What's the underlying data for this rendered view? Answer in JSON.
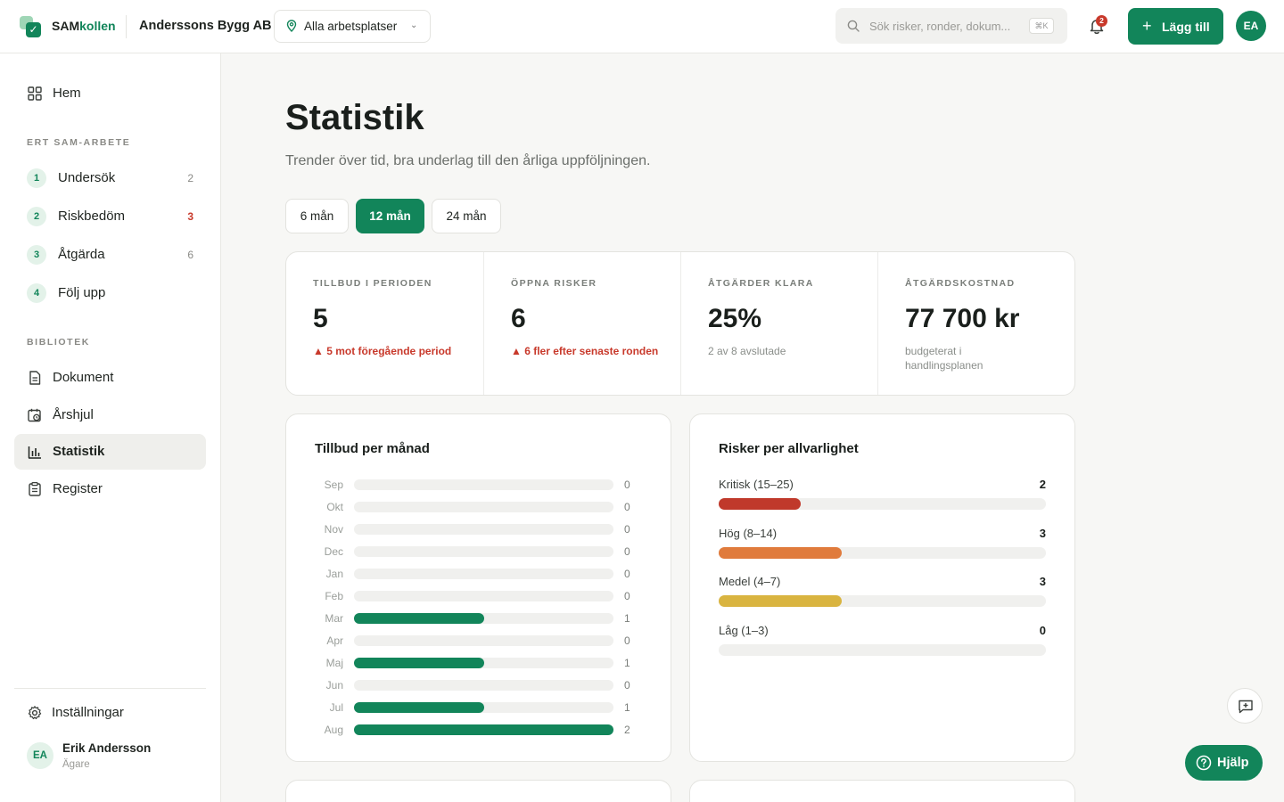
{
  "header": {
    "brand_prefix": "SAM",
    "brand_suffix": "kollen",
    "company": "Anderssons Bygg AB",
    "workplace": "Alla arbetsplatser",
    "search_placeholder": "Sök risker, ronder, dokum...",
    "search_shortcut": "⌘K",
    "notifications_count": "2",
    "add_label": "Lägg till",
    "user_initials": "EA"
  },
  "sidebar": {
    "home": "Hem",
    "work_section": "ERT SAM-ARBETE",
    "steps": [
      {
        "num": "1",
        "label": "Undersök",
        "count": "2"
      },
      {
        "num": "2",
        "label": "Riskbedöm",
        "count": "3"
      },
      {
        "num": "3",
        "label": "Åtgärda",
        "count": "6"
      },
      {
        "num": "4",
        "label": "Följ upp",
        "count": ""
      }
    ],
    "library_section": "BIBLIOTEK",
    "library": [
      "Dokument",
      "Årshjul",
      "Statistik",
      "Register"
    ],
    "settings": "Inställningar",
    "user": {
      "initials": "EA",
      "name": "Erik Andersson",
      "role": "Ägare"
    }
  },
  "main": {
    "title": "Statistik",
    "subtitle": "Trender över tid, bra underlag till den årliga uppföljningen.",
    "periods": [
      "6 mån",
      "12 mån",
      "24 mån"
    ],
    "active_period": "12 mån",
    "kpis": [
      {
        "label": "TILLBUD I PERIODEN",
        "value": "5",
        "note": "▲ 5 mot föregående period",
        "alert": true
      },
      {
        "label": "ÖPPNA RISKER",
        "value": "6",
        "note": "▲ 6 fler efter senaste ronden",
        "alert": true
      },
      {
        "label": "ÅTGÄRDER KLARA",
        "value": "25%",
        "note": "2 av 8 avslutade",
        "alert": false
      },
      {
        "label": "ÅTGÄRDSKOSTNAD",
        "value": "77 700 kr",
        "note": "budgeterat i handlingsplanen",
        "alert": false
      }
    ],
    "help_label": "Hjälp"
  },
  "chart_data": [
    {
      "type": "bar",
      "title": "Tillbud per månad",
      "categories": [
        "Sep",
        "Okt",
        "Nov",
        "Dec",
        "Jan",
        "Feb",
        "Mar",
        "Apr",
        "Maj",
        "Jun",
        "Jul",
        "Aug"
      ],
      "values": [
        0,
        0,
        0,
        0,
        0,
        0,
        1,
        0,
        1,
        0,
        1,
        2
      ],
      "max": 2,
      "color": "#12855a"
    },
    {
      "type": "bar",
      "title": "Risker per allvarlighet",
      "categories": [
        "Kritisk (15–25)",
        "Hög (8–14)",
        "Medel (4–7)",
        "Låg (1–3)"
      ],
      "values": [
        2,
        3,
        3,
        0
      ],
      "max": 8,
      "colors": [
        "#c0392b",
        "#e07b3c",
        "#d9b440",
        "#cccccc"
      ]
    }
  ]
}
